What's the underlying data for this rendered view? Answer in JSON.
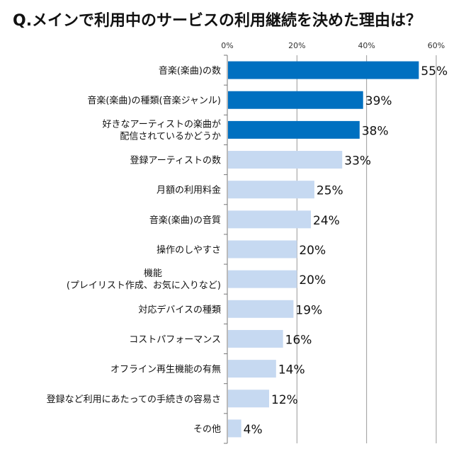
{
  "chart_data": {
    "type": "bar",
    "orientation": "horizontal",
    "title": "Q.メインで利用中のサービスの利用継続を決めた理由は？",
    "xlabel": "",
    "ylabel": "",
    "xlim": [
      0,
      60
    ],
    "ticks": [
      "0%",
      "20%",
      "40%",
      "60%"
    ],
    "tick_values": [
      0,
      20,
      40,
      60
    ],
    "grid": true,
    "categories": [
      [
        "音楽(楽曲)の数"
      ],
      [
        "音楽(楽曲)の種類(音楽ジャンル)"
      ],
      [
        "好きなアーティストの楽曲が",
        "配信されているかどうか"
      ],
      [
        "登録アーティストの数"
      ],
      [
        "月額の利用料金"
      ],
      [
        "音楽(楽曲)の音質"
      ],
      [
        "操作のしやすさ"
      ],
      [
        "機能",
        "(プレイリスト作成、お気に入りなど)"
      ],
      [
        "対応デバイスの種類"
      ],
      [
        "コストパフォーマンス"
      ],
      [
        "オフライン再生機能の有無"
      ],
      [
        "登録など利用にあたっての手続きの容易さ"
      ],
      [
        "その他"
      ]
    ],
    "values": [
      55,
      39,
      38,
      33,
      25,
      24,
      20,
      20,
      19,
      16,
      14,
      12,
      4
    ],
    "value_labels": [
      "55%",
      "39%",
      "38%",
      "33%",
      "25%",
      "24%",
      "20%",
      "20%",
      "19%",
      "16%",
      "14%",
      "12%",
      "4%"
    ],
    "highlight_count": 3,
    "colors": {
      "highlight": "#0070C0",
      "normal": "#C6D9F1",
      "grid": "#999999"
    }
  }
}
